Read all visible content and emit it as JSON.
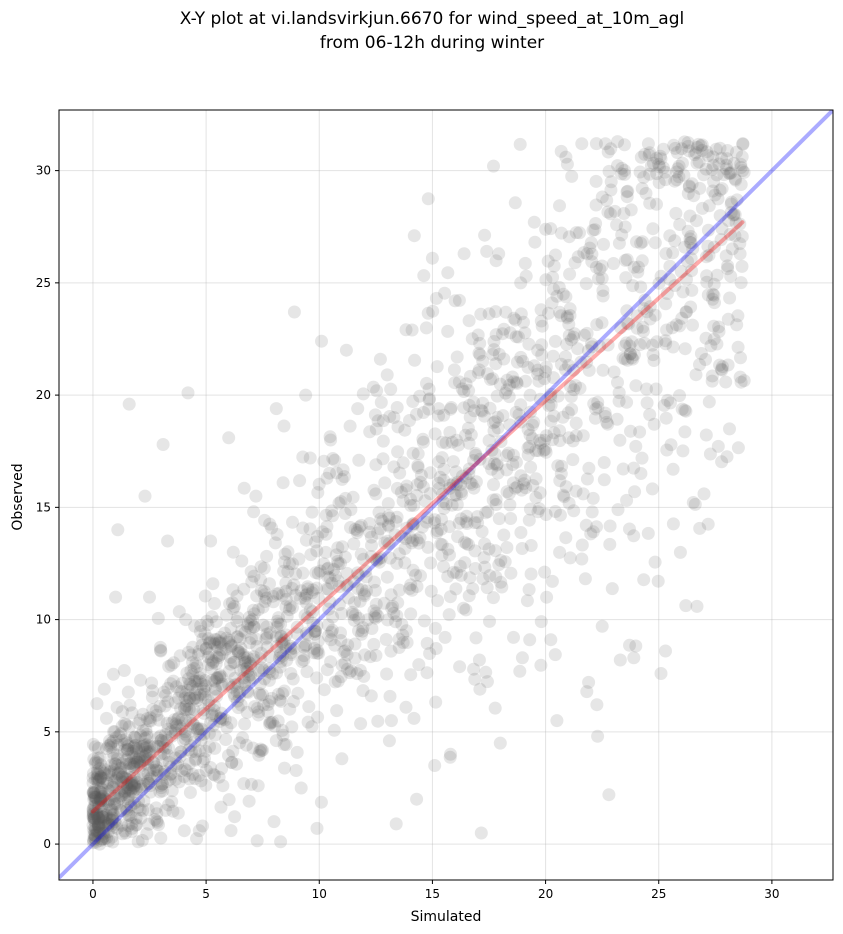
{
  "chart_data": {
    "type": "scatter",
    "title": [
      "X-Y plot at vi.landsvirkjun.6670 for wind_speed_at_10m_agl",
      "from 06-12h during winter"
    ],
    "xlabel": "Simulated",
    "ylabel": "Observed",
    "xlim": [
      -1.5,
      32.7
    ],
    "ylim": [
      -1.6,
      32.7
    ],
    "xticks": [
      0,
      5,
      10,
      15,
      20,
      25,
      30
    ],
    "yticks": [
      0,
      5,
      10,
      15,
      20,
      25,
      30
    ],
    "grid": true,
    "legend": "none",
    "point_color": "#555555",
    "point_opacity": 0.15,
    "identity_line": {
      "name": "1:1",
      "color": "#0000ff",
      "x": [
        -1.5,
        32.7
      ],
      "y": [
        -1.5,
        32.7
      ]
    },
    "regression_line": {
      "name": "fit",
      "color": "#ff0000",
      "x": [
        0,
        28.7
      ],
      "y": [
        1.45,
        27.7
      ]
    },
    "n_points": 2000,
    "sample_points": [
      [
        1.6,
        19.6
      ],
      [
        4.2,
        20.1
      ],
      [
        8.9,
        23.7
      ],
      [
        10.1,
        22.4
      ],
      [
        17.7,
        30.2
      ],
      [
        21.6,
        31.2
      ],
      [
        24.6,
        30.8
      ],
      [
        25.9,
        30.2
      ],
      [
        28.7,
        30.0
      ],
      [
        27.8,
        29.2
      ],
      [
        28.6,
        20.8
      ],
      [
        27.0,
        15.6
      ],
      [
        25.3,
        8.6
      ],
      [
        25.1,
        7.6
      ],
      [
        21.9,
        7.2
      ],
      [
        22.3,
        4.8
      ],
      [
        20.5,
        5.5
      ],
      [
        18.0,
        4.5
      ],
      [
        15.8,
        4.0
      ],
      [
        14.3,
        2.0
      ],
      [
        13.4,
        0.9
      ],
      [
        6.1,
        0.6
      ],
      [
        9.9,
        0.7
      ],
      [
        2.0,
        0.1
      ],
      [
        0.3,
        0.0
      ],
      [
        3.1,
        17.8
      ],
      [
        1.1,
        14.0
      ],
      [
        2.3,
        15.5
      ],
      [
        23.3,
        8.2
      ],
      [
        22.5,
        9.7
      ],
      [
        19.3,
        9.1
      ],
      [
        22.8,
        2.2
      ],
      [
        23.9,
        8.3
      ],
      [
        17.8,
        11.9
      ],
      [
        20.3,
        11.7
      ],
      [
        15.0,
        26.1
      ],
      [
        14.2,
        27.1
      ],
      [
        16.4,
        26.3
      ],
      [
        12.7,
        21.6
      ],
      [
        11.2,
        22.0
      ],
      [
        24.9,
        28.5
      ],
      [
        22.9,
        29.5
      ],
      [
        25.3,
        29.6
      ],
      [
        20.9,
        30.6
      ],
      [
        0.1,
        3.6
      ],
      [
        0.5,
        6.9
      ],
      [
        0.6,
        5.6
      ],
      [
        1.0,
        11.0
      ],
      [
        3.3,
        13.5
      ],
      [
        5.2,
        13.5
      ],
      [
        7.2,
        15.5
      ],
      [
        8.1,
        19.4
      ],
      [
        9.4,
        20.0
      ],
      [
        6.0,
        18.1
      ],
      [
        2.5,
        11.0
      ],
      [
        26.3,
        27.3
      ],
      [
        24.1,
        25.7
      ],
      [
        22.4,
        25.6
      ],
      [
        23.6,
        23.2
      ],
      [
        25.6,
        23.0
      ],
      [
        21.8,
        14.2
      ],
      [
        21.6,
        12.7
      ],
      [
        23.2,
        14.9
      ],
      [
        24.8,
        18.7
      ],
      [
        16.2,
        7.9
      ],
      [
        15.1,
        3.5
      ],
      [
        17.1,
        6.9
      ],
      [
        12.3,
        6.6
      ],
      [
        13.1,
        4.6
      ],
      [
        11.0,
        3.8
      ],
      [
        9.2,
        2.5
      ],
      [
        8.0,
        1.0
      ],
      [
        7.3,
        2.6
      ],
      [
        4.7,
        0.6
      ],
      [
        2.2,
        1.5
      ],
      [
        1.4,
        2.2
      ],
      [
        1.9,
        4.4
      ],
      [
        3.5,
        5.4
      ],
      [
        4.3,
        7.1
      ],
      [
        5.0,
        8.7
      ],
      [
        6.7,
        8.3
      ],
      [
        5.9,
        10.2
      ],
      [
        7.8,
        11.6
      ],
      [
        9.1,
        12.7
      ],
      [
        10.3,
        13.8
      ],
      [
        11.4,
        14.9
      ],
      [
        12.5,
        15.6
      ],
      [
        13.3,
        16.8
      ],
      [
        14.6,
        17.9
      ],
      [
        15.5,
        19.1
      ],
      [
        16.6,
        20.2
      ],
      [
        17.8,
        21.4
      ],
      [
        18.7,
        22.6
      ],
      [
        19.8,
        23.8
      ],
      [
        20.5,
        24.4
      ],
      [
        21.3,
        25.9
      ],
      [
        17.4,
        26.4
      ],
      [
        19.5,
        27.7
      ],
      [
        18.9,
        25.0
      ],
      [
        16.0,
        24.2
      ],
      [
        14.1,
        22.9
      ],
      [
        13.0,
        20.9
      ],
      [
        11.7,
        19.4
      ],
      [
        10.5,
        18.0
      ],
      [
        9.6,
        17.2
      ],
      [
        8.4,
        16.1
      ],
      [
        7.1,
        14.8
      ],
      [
        6.2,
        13.0
      ],
      [
        5.3,
        11.6
      ],
      [
        4.1,
        10.0
      ],
      [
        3.0,
        8.6
      ],
      [
        2.1,
        7.3
      ],
      [
        1.3,
        5.9
      ],
      [
        0.8,
        4.5
      ]
    ]
  }
}
